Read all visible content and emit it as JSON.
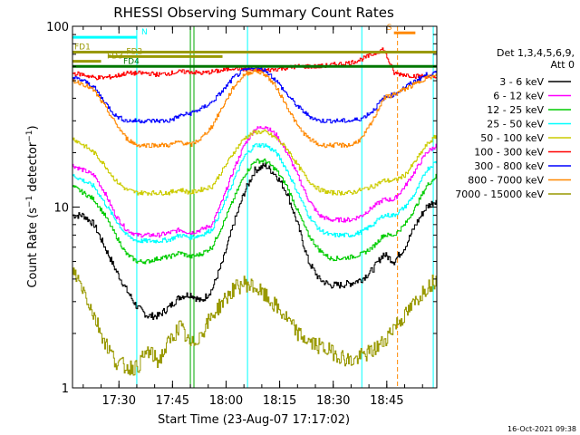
{
  "chart_data": {
    "type": "line",
    "title": "RHESSI Observing Summary Count Rates",
    "xlabel": "Start Time (23-Aug-07 17:17:02)",
    "ylabel": "Count Rate (s⁻¹ detector⁻¹)",
    "ylabel_main": "Count Rate (s",
    "ylabel_sup1": "−1",
    "ylabel_mid": " detector",
    "ylabel_sup2": "−1",
    "ylabel_end": ")",
    "y_scale": "log",
    "ylim": [
      1,
      100
    ],
    "x_unit": "minutes after 17:17:02",
    "xlim": [
      0,
      102
    ],
    "x_ticks": [
      {
        "value": 13,
        "label": "17:30"
      },
      {
        "value": 28,
        "label": "17:45"
      },
      {
        "value": 43,
        "label": "18:00"
      },
      {
        "value": 58,
        "label": "18:15"
      },
      {
        "value": 73,
        "label": "18:30"
      },
      {
        "value": 88,
        "label": "18:45"
      }
    ],
    "y_ticks": [
      {
        "value": 1,
        "label": "1"
      },
      {
        "value": 10,
        "label": "10"
      },
      {
        "value": 100,
        "label": "100"
      }
    ],
    "legend": {
      "placement": "right",
      "header": [
        "Det 1,3,4,5,6,9,",
        "Att 0"
      ],
      "entries": [
        "3 - 6 keV",
        "6 - 12 keV",
        "12 - 25 keV",
        "25 - 50 keV",
        "50 - 100 keV",
        "100 - 300 keV",
        "300 - 800 keV",
        "800 - 7000 keV",
        "7000 - 15000 keV"
      ]
    },
    "series": [
      {
        "name": "3 - 6 keV",
        "color": "#000000",
        "x": [
          0,
          3,
          6,
          9,
          12,
          15,
          18,
          21,
          24,
          27,
          30,
          33,
          36,
          39,
          42,
          45,
          48,
          51,
          54,
          57,
          60,
          63,
          66,
          69,
          72,
          75,
          78,
          81,
          84,
          87,
          90,
          93,
          96,
          99,
          102
        ],
        "y": [
          9,
          9,
          8,
          6,
          4.5,
          3.5,
          2.8,
          2.5,
          2.5,
          2.8,
          3.2,
          3.3,
          3.0,
          3.5,
          5,
          8,
          12,
          16,
          17,
          15,
          12,
          8,
          5,
          4,
          3.7,
          3.7,
          3.8,
          4,
          4.5,
          5.5,
          5,
          6,
          8,
          10,
          11
        ]
      },
      {
        "value_note": "",
        "name": "6 - 12 keV",
        "color": "#ff00ff",
        "x": [
          0,
          3,
          6,
          9,
          12,
          15,
          18,
          21,
          24,
          27,
          30,
          33,
          36,
          39,
          42,
          45,
          48,
          51,
          54,
          57,
          60,
          63,
          66,
          69,
          72,
          75,
          78,
          81,
          84,
          87,
          90,
          93,
          96,
          99,
          102
        ],
        "y": [
          17,
          16,
          15,
          12,
          9,
          7.5,
          7,
          7,
          7,
          7.2,
          7.5,
          7.2,
          7.5,
          8,
          11,
          16,
          22,
          27,
          28,
          25,
          20,
          15,
          11,
          9,
          8.5,
          8.5,
          8.5,
          9,
          10,
          11,
          11,
          13,
          16,
          20,
          22
        ]
      },
      {
        "name": "12 - 25 keV",
        "color": "#00cc00",
        "x": [
          0,
          3,
          6,
          9,
          12,
          15,
          18,
          21,
          24,
          27,
          30,
          33,
          36,
          39,
          42,
          45,
          48,
          51,
          54,
          57,
          60,
          63,
          66,
          69,
          72,
          75,
          78,
          81,
          84,
          87,
          90,
          93,
          96,
          99,
          102
        ],
        "y": [
          13,
          12,
          11,
          9,
          7,
          5.5,
          5,
          5,
          5.2,
          5.3,
          5.6,
          5.3,
          5.5,
          6,
          8,
          11,
          15,
          18,
          18,
          16,
          13,
          9.5,
          7,
          5.8,
          5.2,
          5.2,
          5.3,
          5.5,
          6,
          7,
          7,
          8,
          10,
          13,
          15
        ]
      },
      {
        "name": "25 - 50 keV",
        "color": "#00ffff",
        "x": [
          0,
          3,
          6,
          9,
          12,
          15,
          18,
          21,
          24,
          27,
          30,
          33,
          36,
          39,
          42,
          45,
          48,
          51,
          54,
          57,
          60,
          63,
          66,
          69,
          72,
          75,
          78,
          81,
          84,
          87,
          90,
          93,
          96,
          99,
          102
        ],
        "y": [
          15,
          14,
          13,
          10.5,
          8.5,
          7,
          6.5,
          6.5,
          6.5,
          6.6,
          7,
          6.8,
          7,
          7.5,
          10,
          14,
          19,
          22,
          22,
          20,
          16,
          12,
          9,
          7.5,
          7,
          7,
          7,
          7.3,
          8,
          9,
          9,
          10,
          12,
          16,
          18
        ]
      },
      {
        "name": "50 - 100 keV",
        "color": "#cccc00",
        "x": [
          0,
          3,
          6,
          9,
          12,
          15,
          18,
          21,
          24,
          27,
          30,
          33,
          36,
          39,
          42,
          45,
          48,
          51,
          54,
          57,
          60,
          63,
          66,
          69,
          72,
          75,
          78,
          81,
          84,
          87,
          90,
          93,
          96,
          99,
          102
        ],
        "y": [
          24,
          22,
          20,
          17,
          14,
          12.5,
          12,
          12,
          12,
          12,
          12.5,
          12,
          12.5,
          13,
          16,
          20,
          24,
          26,
          26,
          24,
          21,
          17,
          14,
          12.5,
          12,
          12,
          12,
          12.5,
          13,
          14,
          14,
          15,
          18,
          22,
          25
        ]
      },
      {
        "name": "100 - 300 keV",
        "color": "#ff0000",
        "x": [
          0,
          3,
          6,
          9,
          12,
          15,
          18,
          21,
          24,
          27,
          30,
          33,
          36,
          39,
          42,
          45,
          48,
          51,
          54,
          57,
          60,
          63,
          66,
          69,
          72,
          75,
          78,
          81,
          84,
          87,
          90,
          93,
          96,
          99,
          102
        ],
        "y": [
          55,
          54,
          52,
          52,
          53,
          55,
          55,
          55,
          54,
          55,
          56,
          56,
          55,
          56,
          57,
          59,
          58,
          57,
          57,
          58,
          59,
          60,
          60,
          60,
          61,
          62,
          63,
          66,
          70,
          75,
          55,
          54,
          53,
          53,
          52
        ]
      },
      {
        "name": "300 - 800 keV",
        "color": "#0000ff",
        "x": [
          0,
          3,
          6,
          9,
          12,
          15,
          18,
          21,
          24,
          27,
          30,
          33,
          36,
          39,
          42,
          45,
          48,
          51,
          54,
          57,
          60,
          63,
          66,
          69,
          72,
          75,
          78,
          81,
          84,
          87,
          90,
          93,
          96,
          99,
          102
        ],
        "y": [
          52,
          50,
          46,
          38,
          32,
          30,
          30,
          30,
          30,
          30,
          32,
          33,
          35,
          38,
          44,
          52,
          57,
          59,
          57,
          50,
          42,
          36,
          32,
          30,
          30,
          30,
          30,
          31,
          34,
          40,
          42,
          46,
          50,
          54,
          55
        ]
      },
      {
        "name": "800 - 7000 keV",
        "color": "#ff8800",
        "x": [
          0,
          3,
          6,
          9,
          12,
          15,
          18,
          21,
          24,
          27,
          30,
          33,
          36,
          39,
          42,
          45,
          48,
          51,
          54,
          57,
          60,
          63,
          66,
          69,
          72,
          75,
          78,
          81,
          84,
          87,
          90,
          93,
          96,
          99,
          102
        ],
        "y": [
          50,
          48,
          44,
          36,
          29,
          24,
          22,
          22,
          22,
          22,
          23,
          22,
          24,
          28,
          36,
          46,
          54,
          57,
          54,
          46,
          36,
          28,
          24,
          22,
          22,
          22,
          22,
          24,
          30,
          40,
          42,
          45,
          48,
          52,
          53
        ]
      },
      {
        "name": "7000 - 15000 keV",
        "color": "#999900",
        "x": [
          0,
          3,
          6,
          9,
          12,
          15,
          18,
          21,
          24,
          27,
          30,
          33,
          36,
          39,
          42,
          45,
          48,
          51,
          54,
          57,
          60,
          63,
          66,
          69,
          72,
          75,
          78,
          81,
          84,
          87,
          90,
          93,
          96,
          99,
          102
        ],
        "y": [
          4.5,
          3.5,
          2.5,
          1.8,
          1.4,
          1.3,
          1.3,
          1.6,
          1.4,
          1.8,
          2.2,
          1.7,
          2.0,
          2.5,
          3.0,
          3.5,
          3.8,
          3.6,
          3.2,
          2.8,
          2.4,
          2.0,
          1.8,
          1.7,
          1.6,
          1.5,
          1.4,
          1.5,
          1.6,
          1.8,
          2.2,
          2.5,
          3.0,
          3.6,
          4.0
        ]
      }
    ],
    "flag_bars": [
      {
        "label": "N",
        "color": "#00ffff",
        "x_start": 0,
        "x_end": 18,
        "level": 87
      },
      {
        "label": "S",
        "color": "#ff8800",
        "x_start": 90,
        "x_end": 96,
        "level": 92
      },
      {
        "label": "FD1",
        "color": "#999900",
        "x_start": 0,
        "x_end": 102,
        "level": 72
      },
      {
        "label": "FD2",
        "color": "#999900",
        "x_start": 10,
        "x_end": 42,
        "level": 68
      },
      {
        "label": "FD3",
        "color": "#999900",
        "x_start": 0,
        "x_end": 8,
        "level": 64
      },
      {
        "label": "FD4",
        "color": "#007700",
        "x_start": 0,
        "x_end": 102,
        "level": 60
      }
    ],
    "vertical_markers": [
      {
        "x": 0,
        "color": "#00ffff"
      },
      {
        "x": 18,
        "color": "#00ffff"
      },
      {
        "x": 49,
        "color": "#00ffff"
      },
      {
        "x": 81,
        "color": "#00ffff"
      },
      {
        "x": 101,
        "color": "#00ffff"
      },
      {
        "x": 33,
        "color": "#00aa00"
      },
      {
        "x": 34,
        "color": "#00aa00"
      },
      {
        "x": 91,
        "color": "#ff8800"
      }
    ]
  },
  "footer_timestamp": "16-Oct-2021 09:38"
}
